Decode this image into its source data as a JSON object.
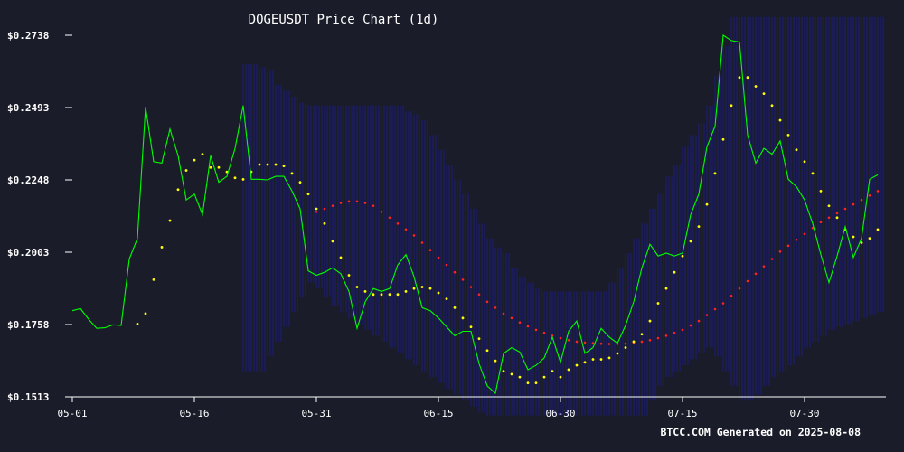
{
  "chart_data": {
    "type": "line",
    "title": "DOGEUSDT Price Chart (1d)",
    "footer": "BTCC.COM Generated on 2025-08-08",
    "y_ticks": [
      "$0.2738",
      "$0.2493",
      "$0.2248",
      "$0.2003",
      "$0.1758",
      "$0.1513"
    ],
    "y_tick_values": [
      0.2738,
      0.2493,
      0.2248,
      0.2003,
      0.1758,
      0.1513
    ],
    "x_ticks": [
      "05-01",
      "05-16",
      "05-31",
      "06-15",
      "06-30",
      "07-15",
      "07-30"
    ],
    "x_tick_days": [
      0,
      15,
      30,
      45,
      60,
      75,
      90
    ],
    "ylim": [
      0.1513,
      0.2738
    ],
    "x_range_days": [
      0,
      100
    ],
    "grid": false,
    "series": [
      {
        "type": "line",
        "color": "#00ff00",
        "values": [
          0.1805,
          0.1812,
          0.1776,
          0.1745,
          0.1747,
          0.1757,
          0.1755,
          0.198,
          0.205,
          0.2495,
          0.231,
          0.2305,
          0.242,
          0.233,
          0.218,
          0.22,
          0.213,
          0.233,
          0.224,
          0.226,
          0.2355,
          0.25,
          0.225,
          0.225,
          0.2248,
          0.226,
          0.226,
          0.221,
          0.215,
          0.194,
          0.1925,
          0.1935,
          0.195,
          0.193,
          0.187,
          0.1745,
          0.1835,
          0.188,
          0.187,
          0.188,
          0.196,
          0.1995,
          0.192,
          0.1815,
          0.1805,
          0.178,
          0.175,
          0.172,
          0.1735,
          0.1735,
          0.1625,
          0.155,
          0.1525,
          0.166,
          0.168,
          0.1665,
          0.1605,
          0.162,
          0.1645,
          0.1715,
          0.163,
          0.1735,
          0.177,
          0.166,
          0.168,
          0.1745,
          0.1715,
          0.1695,
          0.1755,
          0.1835,
          0.195,
          0.203,
          0.199,
          0.2,
          0.199,
          0.2,
          0.213,
          0.22,
          0.236,
          0.243,
          0.2738,
          0.272,
          0.2715,
          0.24,
          0.2305,
          0.2355,
          0.2335,
          0.238,
          0.225,
          0.2225,
          0.218,
          0.21,
          0.1995,
          0.19,
          0.199,
          0.209,
          0.1985,
          0.205,
          0.225,
          0.2265
        ]
      },
      {
        "type": "psar",
        "color": "#ffff00",
        "values": [
          null,
          null,
          null,
          null,
          null,
          null,
          null,
          null,
          0.176,
          0.1795,
          0.191,
          0.202,
          0.211,
          0.2215,
          0.228,
          0.2315,
          0.2335,
          0.229,
          0.229,
          0.2275,
          0.2255,
          0.225,
          0.2275,
          0.23,
          0.23,
          0.23,
          0.2295,
          0.227,
          0.224,
          0.22,
          0.215,
          0.21,
          0.204,
          0.1985,
          0.1925,
          0.1885,
          0.187,
          0.186,
          0.186,
          0.186,
          0.186,
          0.187,
          0.188,
          0.1885,
          0.188,
          0.1865,
          0.1845,
          0.1815,
          0.178,
          0.175,
          0.171,
          0.167,
          0.1635,
          0.16,
          0.159,
          0.158,
          0.156,
          0.156,
          0.158,
          0.16,
          0.158,
          0.1605,
          0.162,
          0.163,
          0.164,
          0.164,
          0.1645,
          0.166,
          0.168,
          0.17,
          0.1725,
          0.177,
          0.183,
          0.188,
          0.1935,
          0.199,
          0.204,
          0.209,
          0.2165,
          0.227,
          0.2385,
          0.25,
          0.2595,
          0.2595,
          0.2565,
          0.254,
          0.25,
          0.245,
          0.24,
          0.235,
          0.231,
          0.227,
          0.221,
          0.216,
          0.212,
          0.208,
          0.2055,
          0.2035,
          0.205,
          0.208
        ]
      },
      {
        "type": "ma",
        "color": "#ff2222",
        "values": [
          null,
          null,
          null,
          null,
          null,
          null,
          null,
          null,
          null,
          null,
          null,
          null,
          null,
          null,
          null,
          null,
          null,
          null,
          null,
          null,
          null,
          null,
          null,
          null,
          null,
          null,
          null,
          null,
          null,
          null,
          0.214,
          0.215,
          0.216,
          0.217,
          0.2175,
          0.2175,
          0.217,
          0.216,
          0.214,
          0.212,
          0.21,
          0.208,
          0.206,
          0.2035,
          0.201,
          0.1985,
          0.196,
          0.1935,
          0.191,
          0.1885,
          0.186,
          0.1835,
          0.1815,
          0.1795,
          0.178,
          0.1765,
          0.1752,
          0.174,
          0.173,
          0.172,
          0.1712,
          0.1705,
          0.17,
          0.1697,
          0.1695,
          0.1693,
          0.1692,
          0.1692,
          0.1693,
          0.1695,
          0.17,
          0.1705,
          0.1712,
          0.172,
          0.173,
          0.174,
          0.1755,
          0.177,
          0.179,
          0.181,
          0.183,
          0.1855,
          0.188,
          0.1905,
          0.193,
          0.1955,
          0.198,
          0.2005,
          0.2025,
          0.2045,
          0.2065,
          0.2085,
          0.2105,
          0.212,
          0.2135,
          0.215,
          0.2165,
          0.218,
          0.2195,
          0.221
        ]
      },
      {
        "type": "band",
        "color": "#1a1a99",
        "upper": [
          null,
          null,
          null,
          null,
          null,
          null,
          null,
          null,
          null,
          null,
          null,
          null,
          null,
          null,
          null,
          null,
          null,
          null,
          null,
          null,
          null,
          0.264,
          0.264,
          0.263,
          0.262,
          0.257,
          0.255,
          0.253,
          0.251,
          0.25,
          0.25,
          0.25,
          0.25,
          0.25,
          0.25,
          0.25,
          0.25,
          0.25,
          0.25,
          0.25,
          0.25,
          0.248,
          0.247,
          0.245,
          0.24,
          0.235,
          0.23,
          0.225,
          0.22,
          0.215,
          0.21,
          0.205,
          0.202,
          0.2,
          0.195,
          0.192,
          0.19,
          0.188,
          0.187,
          0.187,
          0.187,
          0.187,
          0.187,
          0.187,
          0.187,
          0.187,
          0.19,
          0.195,
          0.2,
          0.205,
          0.21,
          0.215,
          0.22,
          0.226,
          0.23,
          0.236,
          0.24,
          0.244,
          0.25,
          0.26,
          0.27,
          0.28,
          0.28,
          0.28,
          0.28,
          0.28,
          0.28,
          0.28,
          0.28,
          0.28,
          0.28,
          0.28,
          0.28,
          0.28,
          0.28,
          0.28,
          0.28,
          0.28,
          0.28,
          0.28
        ],
        "lower": [
          null,
          null,
          null,
          null,
          null,
          null,
          null,
          null,
          null,
          null,
          null,
          null,
          null,
          null,
          null,
          null,
          null,
          null,
          null,
          null,
          null,
          0.16,
          0.16,
          0.16,
          0.165,
          0.17,
          0.175,
          0.18,
          0.185,
          0.19,
          0.188,
          0.185,
          0.182,
          0.18,
          0.178,
          0.176,
          0.174,
          0.172,
          0.17,
          0.168,
          0.166,
          0.164,
          0.162,
          0.16,
          0.158,
          0.156,
          0.154,
          0.152,
          0.15,
          0.148,
          0.146,
          0.145,
          0.145,
          0.145,
          0.145,
          0.145,
          0.145,
          0.145,
          0.145,
          0.145,
          0.145,
          0.145,
          0.145,
          0.145,
          0.145,
          0.145,
          0.145,
          0.145,
          0.145,
          0.145,
          0.145,
          0.15,
          0.155,
          0.158,
          0.16,
          0.162,
          0.164,
          0.166,
          0.168,
          0.165,
          0.16,
          0.155,
          0.15,
          0.15,
          0.152,
          0.155,
          0.158,
          0.16,
          0.162,
          0.165,
          0.168,
          0.17,
          0.172,
          0.174,
          0.175,
          0.176,
          0.177,
          0.178,
          0.179,
          0.18
        ]
      }
    ]
  }
}
